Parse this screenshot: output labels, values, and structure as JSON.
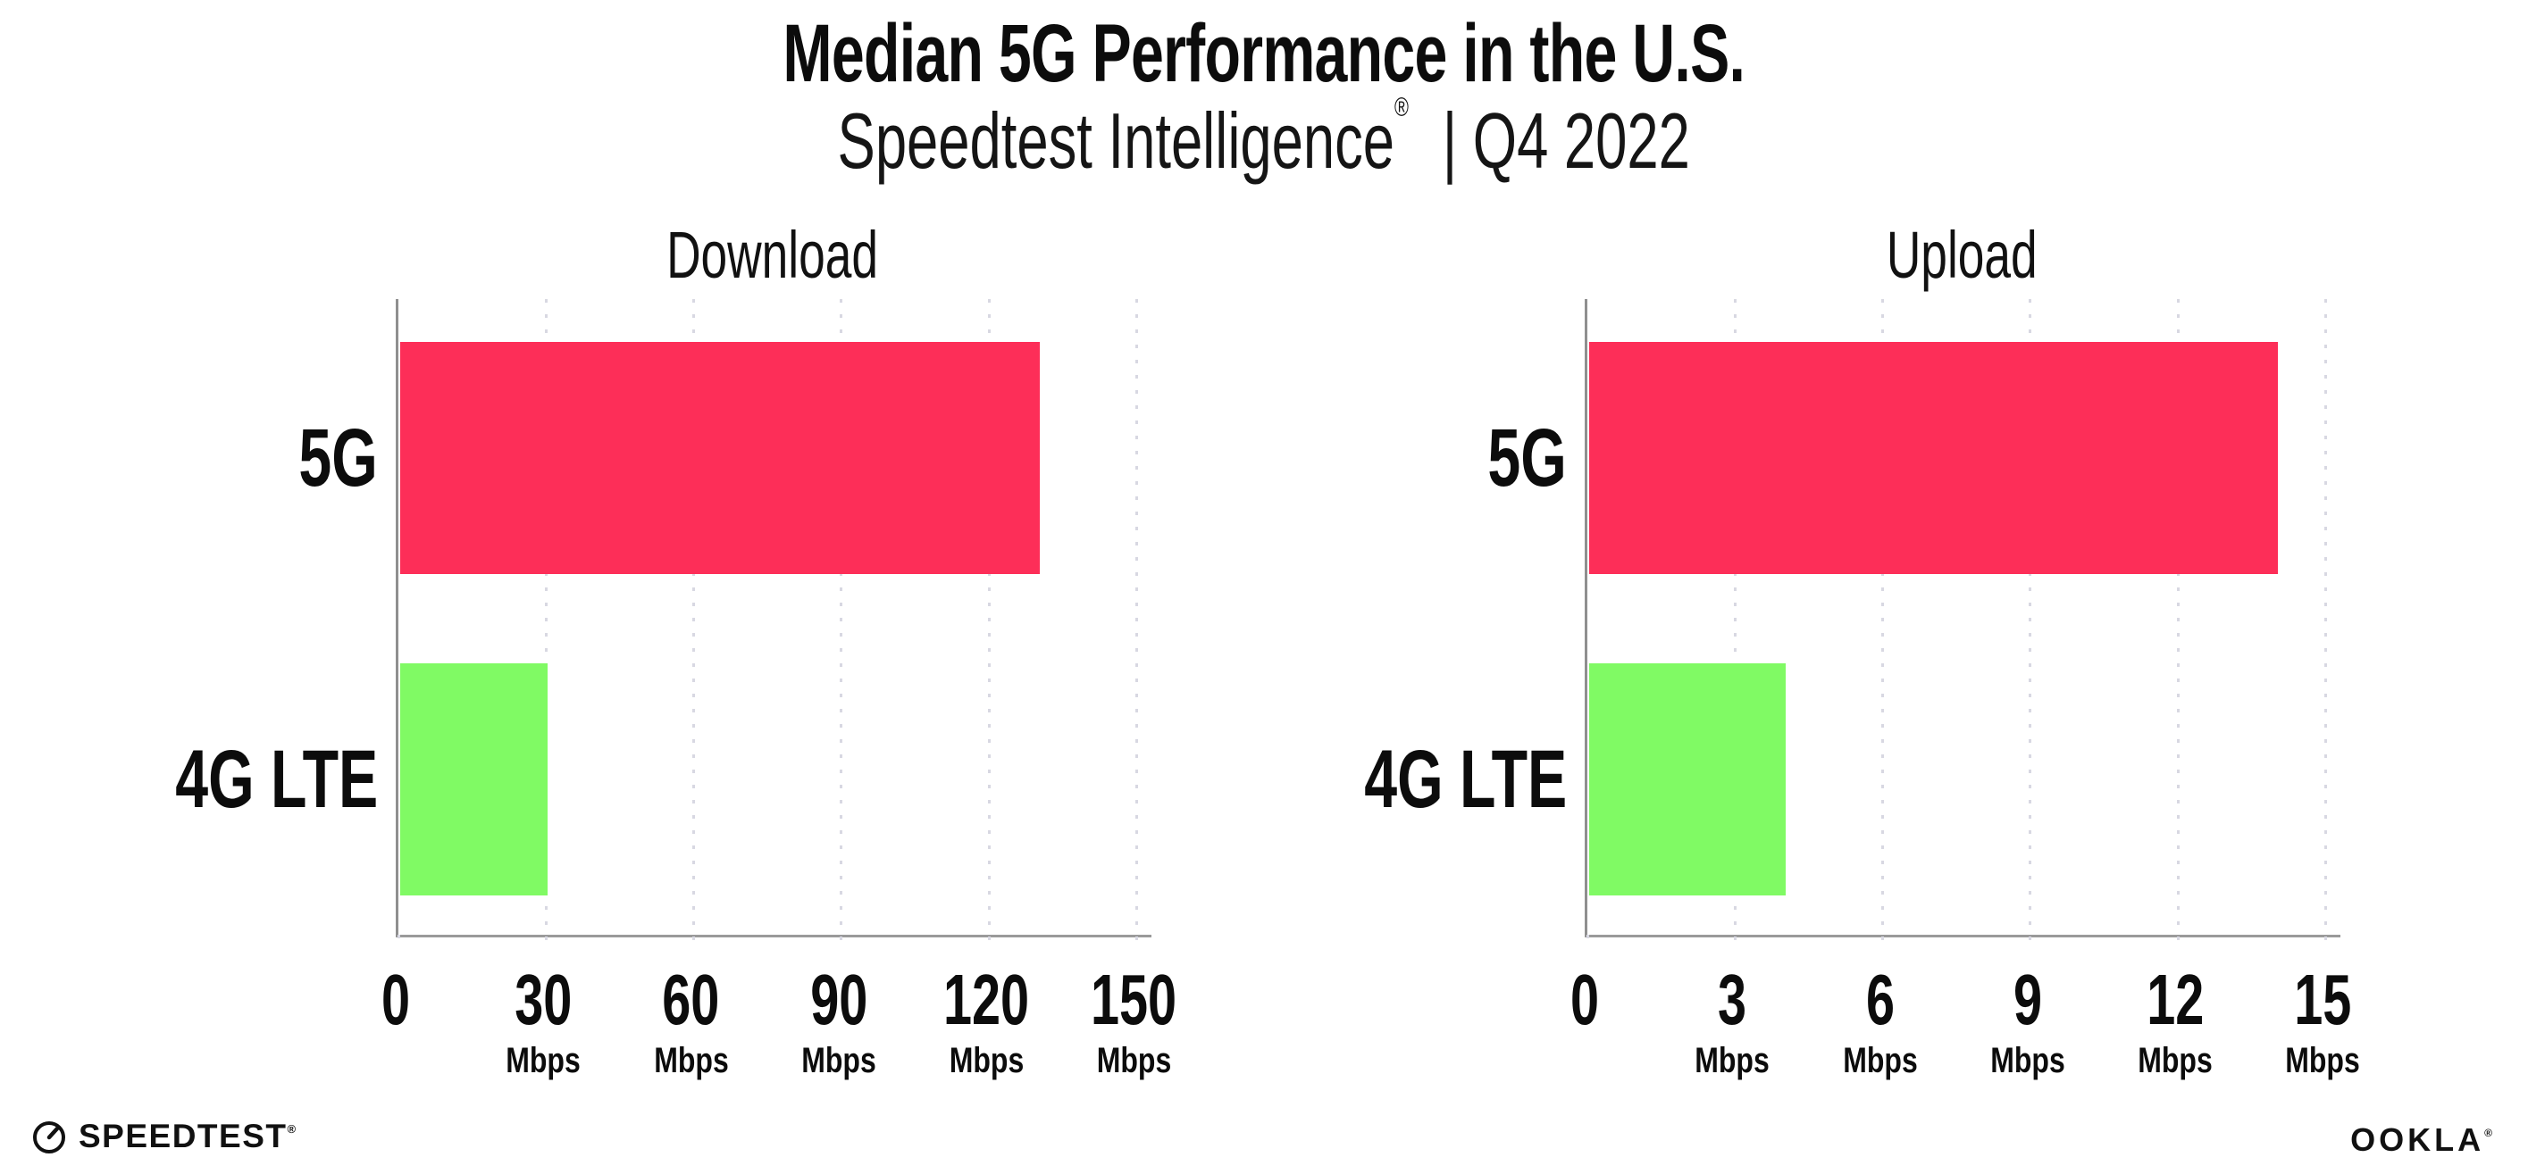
{
  "header": {
    "title": "Median 5G Performance in the U.S.",
    "subtitle_brand": "Speedtest Intelligence",
    "subtitle_mark": "®",
    "subtitle_rest": "| Q4 2022"
  },
  "colors": {
    "bar_5g": "#FD2E58",
    "bar_4g_lte": "#80FA64",
    "gridline": "#d8d8e2",
    "axis": "#9a9a9a",
    "text": "#0c0c0c"
  },
  "chart_data": [
    {
      "type": "bar",
      "orientation": "horizontal",
      "title": "Download",
      "categories": [
        "5G",
        "4G LTE"
      ],
      "values": [
        130,
        30
      ],
      "unit": "Mbps",
      "ticks": [
        0,
        30,
        60,
        90,
        120,
        150
      ],
      "tick_unit": "Mbps",
      "xlim": [
        0,
        153
      ],
      "grid": "vertical-dotted",
      "legend": "none",
      "bar_colors": [
        "#FD2E58",
        "#80FA64"
      ]
    },
    {
      "type": "bar",
      "orientation": "horizontal",
      "title": "Upload",
      "categories": [
        "5G",
        "4G LTE"
      ],
      "values": [
        14,
        4
      ],
      "unit": "Mbps",
      "ticks": [
        0,
        3,
        6,
        9,
        12,
        15
      ],
      "tick_unit": "Mbps",
      "xlim": [
        0,
        15.3
      ],
      "grid": "vertical-dotted",
      "legend": "none",
      "bar_colors": [
        "#FD2E58",
        "#80FA64"
      ]
    }
  ],
  "footer": {
    "speedtest_label": "SPEEDTEST",
    "speedtest_mark": "®",
    "ookla_label": "OOKLA",
    "ookla_mark": "®"
  }
}
